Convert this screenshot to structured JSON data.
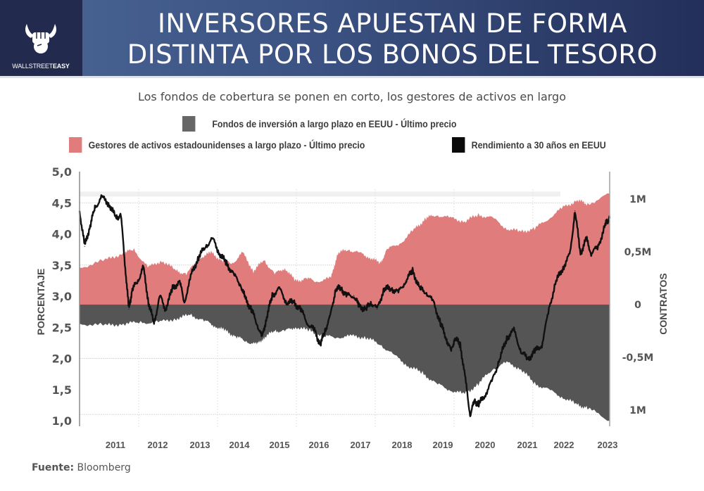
{
  "header": {
    "brand": "WALLSTREET",
    "brand_bold": "EASY",
    "title_line1": "INVERSORES APUESTAN DE FORMA",
    "title_line2": "DISTINTA POR LOS BONOS DEL TESORO"
  },
  "footer": {
    "source_label": "Fuente:",
    "source_value": "Bloomberg"
  },
  "chart_data": {
    "type": "area",
    "title": "INVERSORES APUESTAN DE FORMA DISTINTA POR LOS BONOS DEL TESORO",
    "subtitle": "Los fondos de cobertura se ponen en corto, los gestores de activos en largo",
    "xlabel": "",
    "ylabel": "PORCENTAJE",
    "y2label": "CONTRATOS",
    "xlim": [
      2010.0,
      2023.45
    ],
    "ylim": [
      1.0,
      5.0
    ],
    "y2lim": [
      -1.1,
      1.6
    ],
    "x_ticks": [
      "2011",
      "2012",
      "2013",
      "2014",
      "2015",
      "2016",
      "2017",
      "2018",
      "2019",
      "2020",
      "2021",
      "2022",
      "2023"
    ],
    "y_ticks": [
      "5,0",
      "4,5",
      "4,0",
      "3,5",
      "3,0",
      "2,5",
      "2,0",
      "1,5",
      "1,0"
    ],
    "y2_ticks": [
      {
        "value": 1.0,
        "label": "1M"
      },
      {
        "value": 0.5,
        "label": "0,5M"
      },
      {
        "value": 0.0,
        "label": "0"
      },
      {
        "value": -0.5,
        "label": "-0,5M"
      },
      {
        "value": -1.0,
        "label": "1M"
      }
    ],
    "legend": [
      {
        "name": "Fondos de inversión a largo plazo en EEUU - Último precio",
        "color": "#555555"
      },
      {
        "name": "Gestores de activos estadounidenses a largo plazo - Último precio",
        "color": "#e07c7c"
      },
      {
        "name": "Rendimiento a 30 años en EEUU",
        "color": "#111111"
      }
    ],
    "legend_placement": "top",
    "grid": true,
    "series": [
      {
        "name": "Gestores de activos estadounidenses a largo plazo - Último precio",
        "axis": "right",
        "kind": "area",
        "color": "#e07c7c",
        "unit": "millones de contratos",
        "x": [
          2010.0,
          2010.66,
          2011.11,
          2011.38,
          2011.73,
          2012.09,
          2012.45,
          2012.71,
          2013.07,
          2013.34,
          2013.61,
          2013.88,
          2014.14,
          2014.41,
          2014.68,
          2014.95,
          2015.21,
          2015.48,
          2015.75,
          2016.02,
          2016.38,
          2016.55,
          2016.82,
          2017.09,
          2017.36,
          2017.63,
          2017.8,
          2018.16,
          2018.52,
          2018.79,
          2019.05,
          2019.41,
          2019.77,
          2020.12,
          2020.48,
          2020.84,
          2021.2,
          2021.55,
          2021.91,
          2022.27,
          2022.63,
          2022.89,
          2023.45
        ],
        "values": [
          0.35,
          0.42,
          0.49,
          0.52,
          0.35,
          0.42,
          0.32,
          0.29,
          0.45,
          0.49,
          0.42,
          0.39,
          0.49,
          0.32,
          0.42,
          0.29,
          0.35,
          0.22,
          0.25,
          0.22,
          0.25,
          0.49,
          0.52,
          0.49,
          0.45,
          0.39,
          0.52,
          0.59,
          0.72,
          0.82,
          0.85,
          0.82,
          0.79,
          0.85,
          0.82,
          0.72,
          0.69,
          0.72,
          0.82,
          0.92,
          0.99,
          0.95,
          1.05
        ]
      },
      {
        "name": "Fondos de inversión a largo plazo en EEUU - Último precio",
        "axis": "right",
        "kind": "area",
        "color": "#555555",
        "unit": "millones de contratos",
        "x": [
          2010.0,
          2010.66,
          2011.11,
          2011.55,
          2012.0,
          2012.45,
          2012.8,
          2013.16,
          2013.43,
          2013.7,
          2013.96,
          2014.23,
          2014.5,
          2014.68,
          2014.95,
          2015.21,
          2015.48,
          2015.84,
          2016.2,
          2016.55,
          2016.91,
          2017.27,
          2017.63,
          2017.98,
          2018.34,
          2018.7,
          2019.05,
          2019.41,
          2019.77,
          2020.12,
          2020.48,
          2020.84,
          2021.2,
          2021.55,
          2021.91,
          2022.27,
          2022.63,
          2022.89,
          2023.45
        ],
        "values": [
          -0.18,
          -0.2,
          -0.18,
          -0.17,
          -0.17,
          -0.13,
          -0.1,
          -0.15,
          -0.2,
          -0.25,
          -0.3,
          -0.35,
          -0.38,
          -0.31,
          -0.25,
          -0.25,
          -0.21,
          -0.25,
          -0.3,
          -0.31,
          -0.3,
          -0.31,
          -0.38,
          -0.48,
          -0.58,
          -0.65,
          -0.75,
          -0.81,
          -0.85,
          -0.75,
          -0.61,
          -0.55,
          -0.61,
          -0.75,
          -0.81,
          -0.88,
          -0.95,
          -0.98,
          -1.1
        ]
      },
      {
        "name": "Rendimiento a 30 años en EEUU",
        "axis": "left",
        "kind": "line",
        "color": "#111111",
        "unit": "%",
        "x": [
          2010.0,
          2010.13,
          2010.27,
          2010.39,
          2010.57,
          2010.75,
          2010.93,
          2011.05,
          2011.16,
          2011.25,
          2011.34,
          2011.48,
          2011.62,
          2011.75,
          2011.89,
          2012.04,
          2012.18,
          2012.36,
          2012.54,
          2012.66,
          2012.84,
          2013.02,
          2013.2,
          2013.38,
          2013.55,
          2013.73,
          2013.91,
          2014.09,
          2014.21,
          2014.36,
          2014.5,
          2014.63,
          2014.75,
          2014.89,
          2015.07,
          2015.25,
          2015.43,
          2015.61,
          2015.79,
          2015.96,
          2016.11,
          2016.23,
          2016.36,
          2016.5,
          2016.64,
          2016.77,
          2016.96,
          2017.09,
          2017.27,
          2017.39,
          2017.55,
          2017.73,
          2017.91,
          2018.09,
          2018.27,
          2018.45,
          2018.63,
          2018.8,
          2018.98,
          2019.16,
          2019.3,
          2019.43,
          2019.52,
          2019.66,
          2019.79,
          2019.91,
          2020.02,
          2020.13,
          2020.3,
          2020.48,
          2020.66,
          2020.84,
          2021.02,
          2021.2,
          2021.38,
          2021.55,
          2021.73,
          2021.91,
          2022.09,
          2022.27,
          2022.45,
          2022.57,
          2022.71,
          2022.86,
          2022.98,
          2023.16,
          2023.34,
          2023.43,
          2023.45
        ],
        "values": [
          4.37,
          3.8,
          4.14,
          4.42,
          4.59,
          4.48,
          4.25,
          4.31,
          3.46,
          2.79,
          3.12,
          3.24,
          3.46,
          2.9,
          2.56,
          3.01,
          2.79,
          3.12,
          3.24,
          2.9,
          3.35,
          3.63,
          3.8,
          3.92,
          3.69,
          3.52,
          3.35,
          3.18,
          2.95,
          2.79,
          2.56,
          2.33,
          2.67,
          3.01,
          3.12,
          2.9,
          2.9,
          2.79,
          2.56,
          2.45,
          2.22,
          2.45,
          2.67,
          3.12,
          3.12,
          3.01,
          3.01,
          2.84,
          2.79,
          2.9,
          2.79,
          3.12,
          3.12,
          3.06,
          3.24,
          3.41,
          3.12,
          3.06,
          2.9,
          2.56,
          2.33,
          2.11,
          2.33,
          2.22,
          1.66,
          1.09,
          1.32,
          1.26,
          1.43,
          1.66,
          1.99,
          2.33,
          2.45,
          2.11,
          1.99,
          2.11,
          2.22,
          2.79,
          3.24,
          3.46,
          3.69,
          4.37,
          3.69,
          3.92,
          3.69,
          3.8,
          4.14,
          4.25,
          4.25
        ]
      }
    ]
  }
}
